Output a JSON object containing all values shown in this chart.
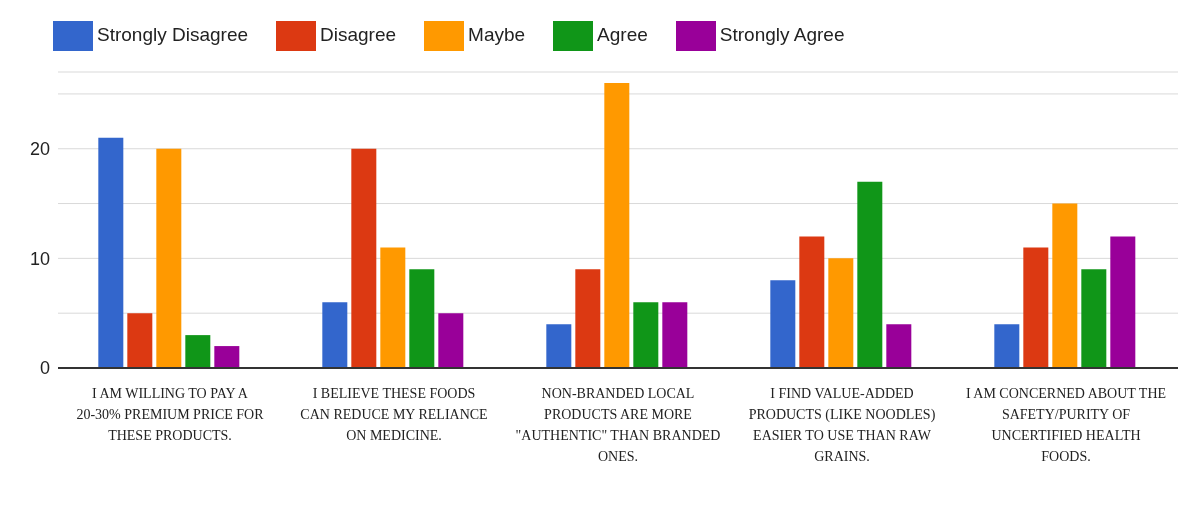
{
  "chart_data": {
    "type": "bar",
    "categories": [
      "I AM WILLING TO PAY A 20-30% PREMIUM PRICE FOR THESE PRODUCTS.",
      "I BELIEVE THESE FOODS CAN REDUCE MY RELIANCE ON MEDICINE.",
      "NON-BRANDED LOCAL PRODUCTS ARE MORE \"AUTHENTIC\" THAN BRANDED ONES.",
      "I FIND VALUE-ADDED PRODUCTS (LIKE NOODLES) EASIER TO USE THAN RAW GRAINS.",
      "I AM CONCERNED ABOUT THE SAFETY/PURITY OF UNCERTIFIED HEALTH FOODS."
    ],
    "series": [
      {
        "name": "Strongly Disagree",
        "color": "#3366cc",
        "values": [
          21,
          6,
          4,
          8,
          4
        ]
      },
      {
        "name": "Disagree",
        "color": "#dc3912",
        "values": [
          5,
          20,
          9,
          12,
          11
        ]
      },
      {
        "name": "Maybe",
        "color": "#ff9900",
        "values": [
          20,
          11,
          26,
          10,
          15
        ]
      },
      {
        "name": "Agree",
        "color": "#109618",
        "values": [
          3,
          9,
          6,
          17,
          9
        ]
      },
      {
        "name": "Strongly Agree",
        "color": "#990099",
        "values": [
          2,
          5,
          6,
          4,
          12
        ]
      }
    ],
    "ylim": [
      0,
      27
    ],
    "yticks": [
      0,
      {
        "value": 5,
        "label": null
      },
      10,
      {
        "value": 15,
        "label": null
      },
      20,
      {
        "value": 25,
        "label": null
      }
    ],
    "grid": "y",
    "legend": "top left"
  }
}
